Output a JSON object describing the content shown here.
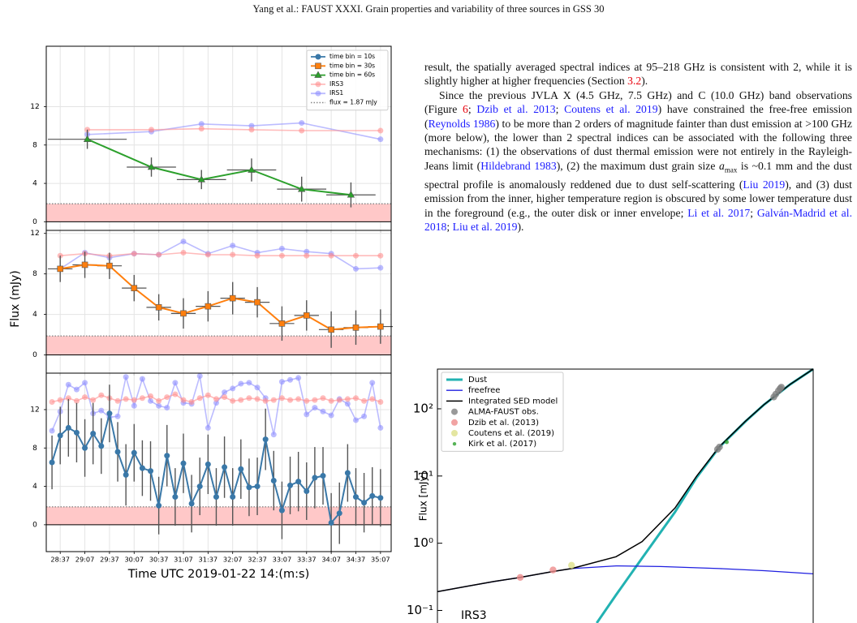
{
  "header": "Yang et al.: FAUST XXXI. Grain properties and variability of three sources in GSS 30",
  "paragraphs": [
    [
      "result, the spatially averaged spectral indices at 95–218 GHz is consistent with 2, while it is slightly higher at higher frequencies (Section ",
      {
        "text": "3.2",
        "color": "#e8000b"
      },
      ")."
    ],
    [
      "Since the previous JVLA X (4.5 GHz, 7.5 GHz) and C (10.0 GHz) band observations (Figure ",
      {
        "text": "6",
        "color": "#e8000b"
      },
      "; ",
      {
        "text": "Dzib et al. 2013",
        "color": "#1c1cff"
      },
      "; ",
      {
        "text": "Coutens et al. 2019",
        "color": "#1c1cff"
      },
      ") have constrained the free-free emission (",
      {
        "text": "Reynolds 1986",
        "color": "#1c1cff"
      },
      ") to be more than 2 orders of magnitude fainter than dust emission at >100 GHz (more below), the lower than 2 spectral indices can be associated with the following three mechanisms: (1) the observations of dust thermal emission were not entirely in the Rayleigh-Jeans limit (",
      {
        "text": "Hildebrand 1983",
        "color": "#1c1cff"
      },
      "), (2) the maximum dust grain size ",
      {
        "text": "a",
        "italic": true
      },
      {
        "text": "max",
        "sub": true
      },
      " is ~0.1 mm and the dust spectral profile is anomalously reddened due to dust self-scattering (",
      {
        "text": "Liu 2019",
        "color": "#1c1cff"
      },
      "), and (3) dust emission from the inner, higher temperature region is obscured by some lower temperature dust in the foreground (e.g., the outer disk or inner envelope; ",
      {
        "text": "Li et al. 2017",
        "color": "#1c1cff"
      },
      "; ",
      {
        "text": "Galván-Madrid et al. 2018",
        "color": "#1c1cff"
      },
      "; ",
      {
        "text": "Liu et al. 2019",
        "color": "#1c1cff"
      },
      ")."
    ]
  ],
  "chart_data": [
    {
      "type": "line",
      "xlim": [
        1700,
        2120
      ],
      "ylim": [
        -0.9,
        18.3
      ],
      "yticks": [
        0,
        4,
        8,
        12
      ],
      "grid": true,
      "flux_limit": 1.87,
      "flux_label": "flux = 1.87 mJy",
      "legend": "upper right",
      "series": [
        {
          "name": "time bin = 60s",
          "color": "#2ca02c",
          "marker": "^",
          "x": [
            1750,
            1828,
            1889,
            1950,
            2011,
            2071
          ],
          "values": [
            8.6,
            5.7,
            4.4,
            5.4,
            3.4,
            2.8
          ],
          "yerr": [
            1.0,
            1.0,
            1.0,
            1.2,
            1.3,
            1.3
          ],
          "xerr": [
            48,
            30,
            30,
            30,
            30,
            30
          ]
        },
        {
          "name": "IRS3",
          "color": "#ff9090",
          "marker": "o",
          "x": [
            1750,
            1828,
            1889,
            1950,
            2011,
            2107
          ],
          "values": [
            9.6,
            9.6,
            9.7,
            9.6,
            9.5,
            9.5
          ]
        },
        {
          "name": "IRS1",
          "color": "#9090ff",
          "marker": "o",
          "x": [
            1750,
            1828,
            1889,
            1950,
            2011,
            2107
          ],
          "values": [
            9.1,
            9.4,
            10.2,
            10.0,
            10.3,
            8.6
          ]
        }
      ]
    },
    {
      "type": "line",
      "xlim": [
        1700,
        2120
      ],
      "ylim": [
        -1.8,
        12.3
      ],
      "yticks": [
        0,
        4,
        8,
        12
      ],
      "grid": true,
      "flux_limit": 1.87,
      "ylabel": "Flux (mJy)",
      "series": [
        {
          "name": "time bin = 30s",
          "color": "#ff7f0e",
          "marker": "s",
          "x": [
            1717,
            1747,
            1777,
            1807,
            1837,
            1867,
            1897,
            1927,
            1957,
            1987,
            2017,
            2047,
            2077,
            2107
          ],
          "values": [
            8.5,
            8.9,
            8.8,
            6.6,
            4.7,
            4.1,
            4.8,
            5.6,
            5.2,
            3.1,
            3.9,
            2.5,
            2.7,
            2.8
          ],
          "yerr": [
            1.3,
            1.3,
            1.3,
            1.3,
            1.3,
            1.5,
            1.5,
            1.6,
            1.5,
            1.7,
            1.5,
            1.8,
            1.7,
            1.7
          ],
          "xerr": [
            15,
            15,
            15,
            15,
            15,
            15,
            15,
            15,
            15,
            15,
            15,
            15,
            15,
            15
          ]
        },
        {
          "color": "#ff9090",
          "marker": "o",
          "x": [
            1717,
            1747,
            1777,
            1807,
            1837,
            1867,
            1897,
            1927,
            1957,
            1987,
            2017,
            2047,
            2077,
            2107
          ],
          "values": [
            9.8,
            10.0,
            9.8,
            10.0,
            9.9,
            10.1,
            9.9,
            9.9,
            9.8,
            9.8,
            9.8,
            9.8,
            9.8,
            9.8
          ]
        },
        {
          "color": "#9090ff",
          "marker": "o",
          "x": [
            1717,
            1747,
            1777,
            1807,
            1837,
            1867,
            1897,
            1927,
            1957,
            1987,
            2017,
            2047,
            2077,
            2107
          ],
          "values": [
            8.5,
            10.1,
            9.6,
            10.0,
            9.9,
            11.2,
            10.0,
            10.8,
            10.1,
            10.5,
            10.2,
            10.0,
            8.5,
            8.6
          ]
        }
      ]
    },
    {
      "type": "line",
      "xlim": [
        1700,
        2120
      ],
      "ylim": [
        -2.8,
        15.8
      ],
      "yticks": [
        0,
        4,
        8,
        12
      ],
      "grid": true,
      "flux_limit": 1.87,
      "xlabel": "Time UTC 2019-01-22 14:(m:s)",
      "xticks": [
        {
          "value": 1717,
          "label": "28:37"
        },
        {
          "value": 1747,
          "label": "29:07"
        },
        {
          "value": 1777,
          "label": "29:37"
        },
        {
          "value": 1807,
          "label": "30:07"
        },
        {
          "value": 1837,
          "label": "30:37"
        },
        {
          "value": 1867,
          "label": "31:07"
        },
        {
          "value": 1897,
          "label": "31:37"
        },
        {
          "value": 1927,
          "label": "32:07"
        },
        {
          "value": 1957,
          "label": "32:37"
        },
        {
          "value": 1987,
          "label": "33:07"
        },
        {
          "value": 2017,
          "label": "33:37"
        },
        {
          "value": 2047,
          "label": "34:07"
        },
        {
          "value": 2077,
          "label": "34:37"
        },
        {
          "value": 2107,
          "label": "35:07"
        }
      ],
      "series": [
        {
          "name": "time bin = 10s",
          "color": "#3a78a8",
          "marker": "o",
          "x": [
            1707,
            1717,
            1727,
            1737,
            1747,
            1757,
            1767,
            1777,
            1787,
            1797,
            1807,
            1817,
            1827,
            1837,
            1847,
            1857,
            1867,
            1877,
            1887,
            1897,
            1907,
            1917,
            1927,
            1937,
            1947,
            1957,
            1967,
            1977,
            1987,
            1997,
            2007,
            2017,
            2027,
            2037,
            2047,
            2057,
            2067,
            2077,
            2087,
            2097,
            2107
          ],
          "values": [
            6.5,
            9.3,
            10.1,
            9.6,
            8.0,
            9.5,
            8.2,
            11.6,
            7.6,
            5.2,
            7.5,
            5.9,
            5.6,
            2.0,
            7.2,
            2.9,
            6.4,
            2.2,
            4.0,
            6.3,
            2.9,
            6.0,
            2.9,
            5.8,
            3.9,
            4.0,
            8.9,
            4.6,
            1.5,
            4.1,
            4.5,
            3.5,
            4.9,
            5.1,
            0.2,
            1.2,
            5.4,
            2.9,
            2.3,
            3.0,
            2.8
          ],
          "yerr": [
            2.8,
            3.0,
            3.0,
            3.1,
            3.0,
            3.2,
            2.9,
            3.0,
            3.1,
            3.2,
            3.0,
            2.9,
            3.1,
            3.0,
            3.2,
            3.0,
            3.1,
            3.0,
            3.0,
            3.1,
            3.0,
            3.2,
            3.0,
            3.1,
            3.0,
            3.0,
            3.2,
            3.1,
            3.0,
            3.0,
            3.1,
            3.0,
            3.2,
            3.0,
            3.1,
            3.2,
            3.0,
            3.0,
            3.1,
            3.0,
            3.0
          ]
        },
        {
          "color": "#ff9090",
          "marker": "o",
          "x": [
            1707,
            1717,
            1727,
            1737,
            1747,
            1757,
            1767,
            1777,
            1787,
            1797,
            1807,
            1817,
            1827,
            1837,
            1847,
            1857,
            1867,
            1877,
            1887,
            1897,
            1907,
            1917,
            1927,
            1937,
            1947,
            1957,
            1967,
            1977,
            1987,
            1997,
            2007,
            2017,
            2027,
            2037,
            2047,
            2057,
            2067,
            2077,
            2087,
            2097,
            2107
          ],
          "values": [
            12.8,
            13.0,
            13.2,
            12.9,
            13.3,
            13.0,
            13.5,
            13.2,
            12.9,
            13.1,
            13.0,
            13.2,
            13.4,
            12.9,
            13.3,
            13.6,
            13.0,
            12.8,
            13.2,
            13.5,
            13.1,
            13.3,
            12.9,
            13.0,
            13.2,
            13.1,
            12.9,
            13.0,
            13.2,
            13.0,
            13.1,
            12.9,
            13.0,
            13.2,
            12.9,
            13.0,
            13.1,
            13.2,
            12.9,
            13.1,
            12.8
          ]
        },
        {
          "color": "#9090ff",
          "marker": "o",
          "x": [
            1707,
            1717,
            1727,
            1737,
            1747,
            1757,
            1767,
            1777,
            1787,
            1797,
            1807,
            1817,
            1827,
            1837,
            1847,
            1857,
            1867,
            1877,
            1887,
            1897,
            1907,
            1917,
            1927,
            1937,
            1947,
            1957,
            1967,
            1977,
            1987,
            1997,
            2007,
            2017,
            2027,
            2037,
            2047,
            2057,
            2067,
            2077,
            2087,
            2097,
            2107
          ],
          "values": [
            9.8,
            11.8,
            14.6,
            14.1,
            14.8,
            11.6,
            11.9,
            11.2,
            11.3,
            15.4,
            12.4,
            15.2,
            12.9,
            12.4,
            12.2,
            14.8,
            12.7,
            12.6,
            15.5,
            10.1,
            12.7,
            13.8,
            14.2,
            14.7,
            14.8,
            14.3,
            13.2,
            9.4,
            14.9,
            15.1,
            15.3,
            11.5,
            12.2,
            11.8,
            11.4,
            13.1,
            12.6,
            10.9,
            11.3,
            14.8,
            10.1
          ]
        }
      ]
    },
    {
      "type": "line",
      "x_log": true,
      "y_log": true,
      "xlim": [
        1.24,
        430
      ],
      "ylim": [
        0.065,
        390
      ],
      "yticks": [
        {
          "value": 0.1,
          "label": "10⁻¹"
        },
        {
          "value": 1,
          "label": "10⁰"
        },
        {
          "value": 10,
          "label": "10¹"
        },
        {
          "value": 100,
          "label": "10²"
        }
      ],
      "ylabel": "Flux [mJy]",
      "annotation": "IRS3",
      "legend": "upper left",
      "series": [
        {
          "name": "Dust",
          "mark": "line",
          "color": "#22b2b2",
          "linewidth": 3,
          "x": [
            14.8,
            20,
            30,
            50,
            70,
            100,
            150,
            200,
            300,
            430
          ],
          "values": [
            0.065,
            0.17,
            0.6,
            2.9,
            9.5,
            27,
            65,
            115,
            230,
            390
          ]
        },
        {
          "name": "freefree",
          "mark": "line",
          "color": "#1f1fe0",
          "linewidth": 1.3,
          "x": [
            1.24,
            2,
            3,
            4.5,
            7.5,
            10,
            20,
            40,
            100,
            200,
            430
          ],
          "values": [
            0.19,
            0.23,
            0.27,
            0.31,
            0.38,
            0.42,
            0.46,
            0.45,
            0.42,
            0.39,
            0.35
          ]
        },
        {
          "name": "Integrated SED model",
          "mark": "line",
          "color": "#000000",
          "linewidth": 1.5,
          "x": [
            1.24,
            2,
            3,
            4.5,
            7.5,
            10,
            20,
            30,
            50,
            70,
            100,
            150,
            200,
            300,
            430
          ],
          "values": [
            0.19,
            0.23,
            0.27,
            0.31,
            0.38,
            0.42,
            0.63,
            1.06,
            3.34,
            9.93,
            27.4,
            65.4,
            115.4,
            230.4,
            390.4
          ]
        },
        {
          "name": "ALMA-FAUST obs.",
          "mark": "point",
          "color": "#808080",
          "x": [
            97,
            100,
            233,
            240,
            250,
            257,
            262
          ],
          "values": [
            25,
            27,
            150,
            165,
            185,
            200,
            210
          ]
        },
        {
          "name": "Dzib et al. (2013)",
          "mark": "point",
          "color": "#ee8c8c",
          "x": [
            4.5,
            7.5
          ],
          "values": [
            0.31,
            0.4
          ]
        },
        {
          "name": "Coutens et al. (2019)",
          "mark": "point",
          "color": "#dde08a",
          "x": [
            10
          ],
          "values": [
            0.47
          ]
        },
        {
          "name": "Kirk et al. (2017)",
          "mark": "point",
          "color": "#2ca02c",
          "x": [
            112
          ],
          "values": [
            32
          ]
        }
      ]
    }
  ]
}
